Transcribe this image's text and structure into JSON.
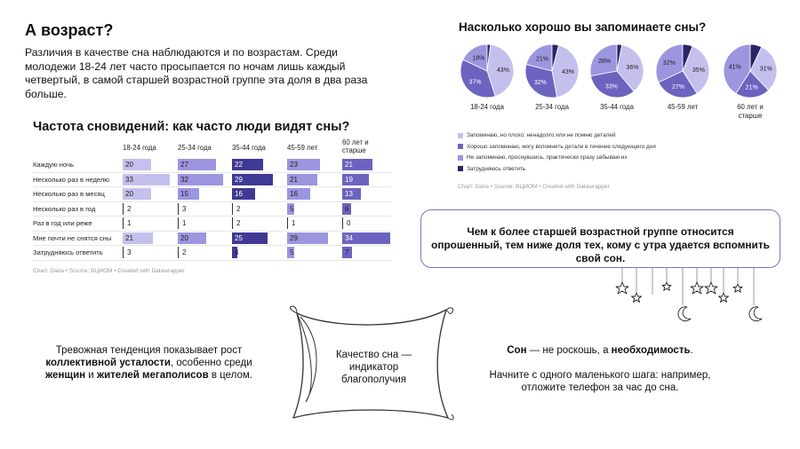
{
  "header": {
    "title": "А возраст?",
    "intro": "Различия в качестве сна наблюдаются и по возрастам. Среди молодежи 18-24 лет часто просыпается по ночам лишь каждый четвертый, в самой старшей возрастной группе эта доля в два раза больше."
  },
  "freq_chart": {
    "title": "Частота сновидений: как часто люди видят сны?",
    "credit": "Chart: Daria • Source: ВЦИОМ • Created with Datawrapper"
  },
  "pie_chart": {
    "title": "Насколько хорошо вы запоминаете сны?",
    "credit": "Chart: Daria • Source: ВЦИОМ • Created with Datawrapper"
  },
  "callout": {
    "text": "Чем к более старшей возрастной группе относится опрошенный, тем ниже доля тех, кому с утра удается вспомнить свой сон."
  },
  "bottom_left": {
    "part1": "Тревожная тенденция показывает рост ",
    "bold1": "коллективной усталости",
    "part2": ", особенно среди ",
    "bold2": "женщин",
    "part3": " и ",
    "bold3": "жителей мегаполисов",
    "part4": " в целом."
  },
  "pillow": {
    "text": "Качество сна — индикатор благополучия"
  },
  "bottom_right": {
    "bold1": "Сон",
    "part1": " — не роскошь, а ",
    "bold2": "необходимость",
    "part2": ".",
    "line2": "Начните с одного маленького шага: например, отложите телефон за час до сна."
  },
  "colors": {
    "light": "#c4c0ee",
    "c1": "#9c95e0",
    "c2": "#6c63c0",
    "c3": "#403993",
    "c4": "#2a2468",
    "frame": "#7d74c2"
  },
  "chart_data": [
    {
      "type": "table",
      "title": "Частота сновидений: как часто люди видят сны?",
      "columns": [
        "18-24 года",
        "25-34 года",
        "35-44 года",
        "45-59 лет",
        "60 лет и старше"
      ],
      "rows": [
        {
          "label": "Каждую ночь",
          "values": [
            20,
            27,
            22,
            23,
            21
          ]
        },
        {
          "label": "Несколько раз в неделю",
          "values": [
            33,
            32,
            29,
            21,
            19
          ]
        },
        {
          "label": "Несколько раз в месяц",
          "values": [
            20,
            15,
            16,
            16,
            13
          ]
        },
        {
          "label": "Несколько раз в год",
          "values": [
            2,
            3,
            2,
            5,
            6
          ]
        },
        {
          "label": "Раз в год или реже",
          "values": [
            1,
            1,
            2,
            1,
            0
          ]
        },
        {
          "label": "Мне почти не снятся сны",
          "values": [
            21,
            20,
            25,
            29,
            34
          ]
        },
        {
          "label": "Затрудняюсь ответить",
          "values": [
            3,
            2,
            4,
            5,
            7
          ]
        }
      ]
    },
    {
      "type": "pie",
      "title": "Насколько хорошо вы запоминаете сны?",
      "legend": [
        "Запоминаю, но плохо: ненадолго или не помню деталей",
        "Хорошо запоминаю, могу вспомнить детали в течение следующего дня",
        "Не запоминаю, проснувшись, практически сразу забываю их",
        "Затрудняюсь ответить"
      ],
      "groups": [
        {
          "label": "18-24 года",
          "values": [
            43,
            37,
            18,
            2
          ],
          "labels": [
            "43%",
            "37%",
            "18%",
            ""
          ]
        },
        {
          "label": "25-34 года",
          "values": [
            43,
            32,
            21,
            4
          ],
          "labels": [
            "43%",
            "32%",
            "21%",
            ""
          ]
        },
        {
          "label": "35-44 года",
          "values": [
            36,
            33,
            28,
            3
          ],
          "labels": [
            "36%",
            "33%",
            "28%",
            ""
          ]
        },
        {
          "label": "45-59 лет",
          "values": [
            35,
            27,
            32,
            6
          ],
          "labels": [
            "35%",
            "27%",
            "32%",
            ""
          ]
        },
        {
          "label": "60 лет и старше",
          "values": [
            31,
            21,
            41,
            7
          ],
          "labels": [
            "31%",
            "21%",
            "41%",
            ""
          ]
        }
      ]
    }
  ]
}
